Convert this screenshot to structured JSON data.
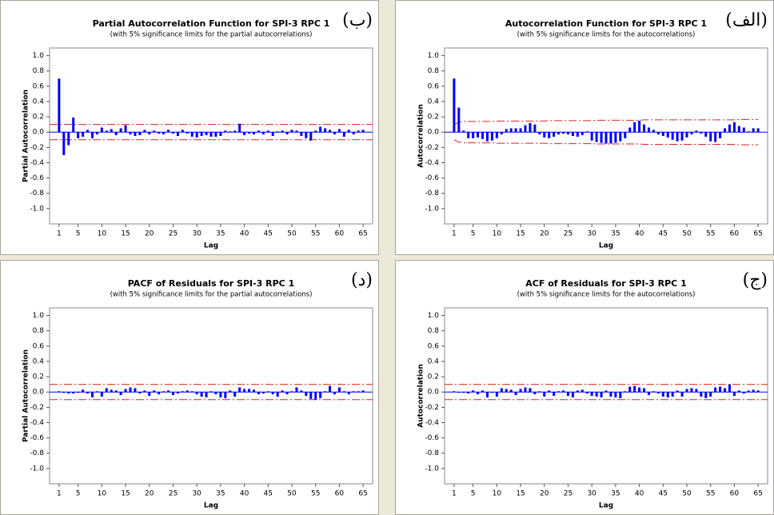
{
  "chart_data": [
    {
      "type": "bar",
      "title": "Partial Autocorrelation Function for SPI-3 RPC 1",
      "subtitle": "(with 5% significance limits for the partial autocorrelations)",
      "panel_label": "(ب)",
      "xlabel": "Lag",
      "ylabel": "Partial Autocorrelation",
      "color": "#0000ff",
      "limit_color": "#e02020",
      "x": [
        1,
        2,
        3,
        4,
        5,
        6,
        7,
        8,
        9,
        10,
        11,
        12,
        13,
        14,
        15,
        16,
        17,
        18,
        19,
        20,
        21,
        22,
        23,
        24,
        25,
        26,
        27,
        28,
        29,
        30,
        31,
        32,
        33,
        34,
        35,
        36,
        37,
        38,
        39,
        40,
        41,
        42,
        43,
        44,
        45,
        46,
        47,
        48,
        49,
        50,
        51,
        52,
        53,
        54,
        55,
        56,
        57,
        58,
        59,
        60,
        61,
        62,
        63,
        64,
        65
      ],
      "values": [
        0.7,
        -0.3,
        -0.17,
        0.19,
        -0.08,
        -0.06,
        0.03,
        -0.08,
        -0.03,
        0.06,
        0.02,
        0.04,
        -0.04,
        0.05,
        0.09,
        -0.03,
        -0.05,
        -0.04,
        0.03,
        -0.03,
        0.02,
        -0.02,
        -0.03,
        0.03,
        -0.02,
        -0.05,
        0.03,
        -0.02,
        -0.06,
        -0.07,
        -0.05,
        -0.04,
        -0.06,
        -0.06,
        -0.05,
        0.02,
        0.01,
        0.02,
        0.11,
        -0.04,
        -0.02,
        -0.03,
        0.02,
        -0.03,
        0.02,
        -0.05,
        0.01,
        0.02,
        -0.03,
        0.03,
        0.02,
        -0.05,
        -0.08,
        -0.11,
        0.02,
        0.07,
        0.05,
        0.03,
        -0.03,
        0.04,
        -0.06,
        0.03,
        -0.03,
        0.02,
        0.03
      ],
      "upper_limit": 0.1,
      "lower_limit": -0.1,
      "xlim": [
        -1,
        67
      ],
      "ylim": [
        -1.2,
        1.1
      ],
      "xticks": [
        1,
        5,
        10,
        15,
        20,
        25,
        30,
        35,
        40,
        45,
        50,
        55,
        60,
        65
      ],
      "yticks": [
        {
          "value": 1,
          "label": "1.0"
        },
        {
          "value": 0.8,
          "label": "0.8"
        },
        {
          "value": 0.6,
          "label": "0.6"
        },
        {
          "value": 0.4,
          "label": "0.4"
        },
        {
          "value": 0.2,
          "label": "0.2"
        },
        {
          "value": 0,
          "label": "0.0"
        },
        {
          "value": -0.2,
          "label": "-0.2"
        },
        {
          "value": -0.4,
          "label": "-0.4"
        },
        {
          "value": -0.6,
          "label": "-0.6"
        },
        {
          "value": -0.8,
          "label": "-0.8"
        },
        {
          "value": -1,
          "label": "-1.0"
        }
      ]
    },
    {
      "type": "bar",
      "title": "Autocorrelation Function for SPI-3 RPC 1",
      "subtitle": "(with 5% significance limits for the autocorrelations)",
      "panel_label": "(الف)",
      "xlabel": "Lag",
      "ylabel": "Autocorrelation",
      "color": "#0000ff",
      "limit_color": "#e02020",
      "x": [
        1,
        2,
        3,
        4,
        5,
        6,
        7,
        8,
        9,
        10,
        11,
        12,
        13,
        14,
        15,
        16,
        17,
        18,
        19,
        20,
        21,
        22,
        23,
        24,
        25,
        26,
        27,
        28,
        29,
        30,
        31,
        32,
        33,
        34,
        35,
        36,
        37,
        38,
        39,
        40,
        41,
        42,
        43,
        44,
        45,
        46,
        47,
        48,
        49,
        50,
        51,
        52,
        53,
        54,
        55,
        56,
        57,
        58,
        59,
        60,
        61,
        62,
        63,
        64,
        65
      ],
      "values": [
        0.7,
        0.32,
        0.02,
        -0.08,
        -0.08,
        -0.07,
        -0.09,
        -0.12,
        -0.11,
        -0.08,
        -0.03,
        0.04,
        0.05,
        0.05,
        0.05,
        0.09,
        0.12,
        0.1,
        -0.03,
        -0.07,
        -0.08,
        -0.06,
        -0.03,
        -0.02,
        -0.03,
        -0.05,
        -0.06,
        -0.04,
        0.01,
        -0.11,
        -0.13,
        -0.14,
        -0.15,
        -0.15,
        -0.14,
        -0.12,
        -0.08,
        0.06,
        0.13,
        0.15,
        0.1,
        0.06,
        0.03,
        -0.03,
        -0.05,
        -0.07,
        -0.1,
        -0.12,
        -0.11,
        -0.07,
        -0.03,
        0.02,
        -0.02,
        -0.06,
        -0.12,
        -0.13,
        -0.08,
        0.05,
        0.1,
        0.13,
        0.08,
        0.06,
        0.01,
        0.05,
        0.05
      ],
      "upper_limit": [
        0.1,
        0.13,
        0.14,
        0.14,
        0.14,
        0.14,
        0.14,
        0.14,
        0.14,
        0.145,
        0.145,
        0.145,
        0.145,
        0.145,
        0.145,
        0.145,
        0.145,
        0.145,
        0.145,
        0.145,
        0.15,
        0.15,
        0.15,
        0.15,
        0.15,
        0.15,
        0.15,
        0.15,
        0.15,
        0.15,
        0.155,
        0.155,
        0.155,
        0.155,
        0.155,
        0.155,
        0.155,
        0.155,
        0.155,
        0.155,
        0.16,
        0.16,
        0.16,
        0.16,
        0.16,
        0.16,
        0.16,
        0.16,
        0.16,
        0.16,
        0.16,
        0.16,
        0.16,
        0.16,
        0.16,
        0.16,
        0.16,
        0.16,
        0.16,
        0.16,
        0.165,
        0.165,
        0.165,
        0.165,
        0.165
      ],
      "lower_limit": [
        -0.1,
        -0.13,
        -0.14,
        -0.14,
        -0.14,
        -0.14,
        -0.14,
        -0.14,
        -0.14,
        -0.145,
        -0.145,
        -0.145,
        -0.145,
        -0.145,
        -0.145,
        -0.145,
        -0.145,
        -0.145,
        -0.145,
        -0.145,
        -0.15,
        -0.15,
        -0.15,
        -0.15,
        -0.15,
        -0.15,
        -0.15,
        -0.15,
        -0.15,
        -0.15,
        -0.155,
        -0.155,
        -0.155,
        -0.155,
        -0.155,
        -0.155,
        -0.155,
        -0.155,
        -0.155,
        -0.155,
        -0.16,
        -0.16,
        -0.16,
        -0.16,
        -0.16,
        -0.16,
        -0.16,
        -0.16,
        -0.16,
        -0.16,
        -0.16,
        -0.16,
        -0.16,
        -0.16,
        -0.16,
        -0.16,
        -0.16,
        -0.16,
        -0.16,
        -0.16,
        -0.165,
        -0.165,
        -0.165,
        -0.165,
        -0.165
      ],
      "xlim": [
        -1,
        67
      ],
      "ylim": [
        -1.2,
        1.1
      ],
      "xticks": [
        1,
        5,
        10,
        15,
        20,
        25,
        30,
        35,
        40,
        45,
        50,
        55,
        60,
        65
      ],
      "yticks": [
        {
          "value": 1,
          "label": "1.0"
        },
        {
          "value": 0.8,
          "label": "0.8"
        },
        {
          "value": 0.6,
          "label": "0.6"
        },
        {
          "value": 0.4,
          "label": "0.4"
        },
        {
          "value": 0.2,
          "label": "0.2"
        },
        {
          "value": 0,
          "label": "0.0"
        },
        {
          "value": -0.2,
          "label": "-0.2"
        },
        {
          "value": -0.4,
          "label": "-0.4"
        },
        {
          "value": -0.6,
          "label": "-0.6"
        },
        {
          "value": -0.8,
          "label": "-0.8"
        },
        {
          "value": -1,
          "label": "-1.0"
        }
      ]
    },
    {
      "type": "bar",
      "title": "PACF of Residuals for SPI-3 RPC 1",
      "subtitle": "(with 5% significance limits for the partial autocorrelations)",
      "panel_label": "(د)",
      "xlabel": "Lag",
      "ylabel": "Partial Autocorrelation",
      "color": "#0000ff",
      "limit_color": "#e02020",
      "x": [
        1,
        2,
        3,
        4,
        5,
        6,
        7,
        8,
        9,
        10,
        11,
        12,
        13,
        14,
        15,
        16,
        17,
        18,
        19,
        20,
        21,
        22,
        23,
        24,
        25,
        26,
        27,
        28,
        29,
        30,
        31,
        32,
        33,
        34,
        35,
        36,
        37,
        38,
        39,
        40,
        41,
        42,
        43,
        44,
        45,
        46,
        47,
        48,
        49,
        50,
        51,
        52,
        53,
        54,
        55,
        56,
        57,
        58,
        59,
        60,
        61,
        62,
        63,
        64,
        65
      ],
      "values": [
        0.01,
        -0.01,
        -0.02,
        -0.02,
        -0.01,
        0.03,
        -0.02,
        -0.07,
        0.01,
        -0.06,
        0.05,
        0.03,
        0.02,
        -0.04,
        0.04,
        0.06,
        0.05,
        -0.02,
        0.02,
        -0.05,
        0.02,
        -0.03,
        0.01,
        0.02,
        -0.04,
        -0.02,
        0.01,
        0.02,
        0.01,
        -0.03,
        -0.06,
        -0.07,
        0.01,
        -0.03,
        -0.07,
        -0.08,
        0.02,
        -0.06,
        0.06,
        0.04,
        0.04,
        0.03,
        -0.03,
        -0.02,
        0.01,
        -0.03,
        -0.06,
        0.02,
        -0.03,
        0.01,
        0.06,
        0.02,
        -0.05,
        -0.09,
        -0.1,
        -0.08,
        0.01,
        0.08,
        -0.03,
        0.06,
        0.01,
        -0.03,
        0.01,
        0.01,
        0.02
      ],
      "upper_limit": 0.1,
      "lower_limit": -0.1,
      "xlim": [
        -1,
        67
      ],
      "ylim": [
        -1.2,
        1.1
      ],
      "xticks": [
        1,
        5,
        10,
        15,
        20,
        25,
        30,
        35,
        40,
        45,
        50,
        55,
        60,
        65
      ],
      "yticks": [
        {
          "value": 1,
          "label": "1.0"
        },
        {
          "value": 0.8,
          "label": "0.8"
        },
        {
          "value": 0.6,
          "label": "0.6"
        },
        {
          "value": 0.4,
          "label": "0.4"
        },
        {
          "value": 0.2,
          "label": "0.2"
        },
        {
          "value": 0,
          "label": "0.0"
        },
        {
          "value": -0.2,
          "label": "-0.2"
        },
        {
          "value": -0.4,
          "label": "-0.4"
        },
        {
          "value": -0.6,
          "label": "-0.6"
        },
        {
          "value": -0.8,
          "label": "-0.8"
        },
        {
          "value": -1,
          "label": "-1.0"
        }
      ]
    },
    {
      "type": "bar",
      "title": "ACF of Residuals for SPI-3 RPC 1",
      "subtitle": "(with 5% significance limits for the autocorrelations)",
      "panel_label": "(ج)",
      "xlabel": "Lag",
      "ylabel": "Autocorrelation",
      "color": "#0000ff",
      "limit_color": "#e02020",
      "x": [
        1,
        2,
        3,
        4,
        5,
        6,
        7,
        8,
        9,
        10,
        11,
        12,
        13,
        14,
        15,
        16,
        17,
        18,
        19,
        20,
        21,
        22,
        23,
        24,
        25,
        26,
        27,
        28,
        29,
        30,
        31,
        32,
        33,
        34,
        35,
        36,
        37,
        38,
        39,
        40,
        41,
        42,
        43,
        44,
        45,
        46,
        47,
        48,
        49,
        50,
        51,
        52,
        53,
        54,
        55,
        56,
        57,
        58,
        59,
        60,
        61,
        62,
        63,
        64,
        65
      ],
      "values": [
        0.01,
        -0.01,
        -0.01,
        -0.02,
        0.02,
        -0.03,
        0.02,
        -0.07,
        -0.01,
        -0.06,
        0.05,
        0.04,
        0.03,
        -0.04,
        0.04,
        0.06,
        0.05,
        -0.03,
        0.01,
        -0.06,
        0.02,
        -0.05,
        0.01,
        0.02,
        -0.05,
        -0.07,
        0.02,
        0.03,
        -0.02,
        -0.05,
        -0.06,
        -0.07,
        0.02,
        -0.06,
        -0.07,
        -0.08,
        0.01,
        0.07,
        0.08,
        0.06,
        0.05,
        -0.04,
        0.01,
        -0.02,
        -0.06,
        -0.07,
        -0.06,
        0.02,
        -0.06,
        0.04,
        0.05,
        0.04,
        -0.06,
        -0.08,
        -0.06,
        0.06,
        0.07,
        0.05,
        0.1,
        -0.05,
        0.02,
        -0.02,
        0.02,
        0.03,
        0.02
      ],
      "upper_limit": 0.1,
      "lower_limit": -0.1,
      "xlim": [
        -1,
        67
      ],
      "ylim": [
        -1.2,
        1.1
      ],
      "xticks": [
        1,
        5,
        10,
        15,
        20,
        25,
        30,
        35,
        40,
        45,
        50,
        55,
        60,
        65
      ],
      "yticks": [
        {
          "value": 1,
          "label": "1.0"
        },
        {
          "value": 0.8,
          "label": "0.8"
        },
        {
          "value": 0.6,
          "label": "0.6"
        },
        {
          "value": 0.4,
          "label": "0.4"
        },
        {
          "value": 0.2,
          "label": "0.2"
        },
        {
          "value": 0,
          "label": "0.0"
        },
        {
          "value": -0.2,
          "label": "-0.2"
        },
        {
          "value": -0.4,
          "label": "-0.4"
        },
        {
          "value": -0.6,
          "label": "-0.6"
        },
        {
          "value": -0.8,
          "label": "-0.8"
        },
        {
          "value": -1,
          "label": "-1.0"
        }
      ]
    }
  ]
}
